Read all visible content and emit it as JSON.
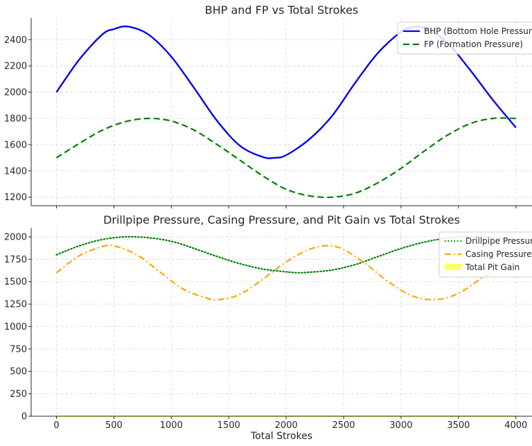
{
  "chart_data": [
    {
      "type": "line",
      "title": "BHP and FP vs Total Strokes",
      "xlabel": "",
      "ylabel": "",
      "xlim": [
        -220,
        4140
      ],
      "ylim": [
        1135,
        2565
      ],
      "xticks": [
        0,
        500,
        1000,
        1500,
        2000,
        2500,
        3000,
        3500,
        4000
      ],
      "yticks": [
        1200,
        1400,
        1600,
        1800,
        2000,
        2200,
        2400
      ],
      "ytick_labels": [
        "1200",
        "1400",
        "1600",
        "1800",
        "2000",
        "2200",
        "2400"
      ],
      "grid": true,
      "legend": "top-right",
      "series": [
        {
          "name": "BHP (Bottom Hole Pressure)",
          "color": "#0000ee",
          "style": "solid",
          "x": [
            0,
            200,
            400,
            500,
            620,
            800,
            1000,
            1200,
            1400,
            1600,
            1800,
            1900,
            2000,
            2200,
            2400,
            2600,
            2800,
            3000,
            3100,
            3200,
            3400,
            3600,
            3800,
            4000
          ],
          "y": [
            2000,
            2250,
            2440,
            2480,
            2500,
            2440,
            2270,
            2030,
            1780,
            1590,
            1505,
            1500,
            1520,
            1640,
            1820,
            2070,
            2300,
            2460,
            2495,
            2490,
            2380,
            2170,
            1940,
            1730
          ]
        },
        {
          "name": "FP (Formation Pressure)",
          "color": "#007f00",
          "style": "dashed",
          "x": [
            0,
            200,
            400,
            600,
            800,
            1000,
            1200,
            1400,
            1600,
            1800,
            2000,
            2200,
            2400,
            2600,
            2800,
            3000,
            3200,
            3400,
            3600,
            3800,
            4000
          ],
          "y": [
            1500,
            1610,
            1710,
            1775,
            1800,
            1780,
            1710,
            1600,
            1480,
            1360,
            1260,
            1210,
            1200,
            1230,
            1310,
            1420,
            1550,
            1670,
            1760,
            1800,
            1800
          ]
        }
      ]
    },
    {
      "type": "line",
      "title": "Drillpipe Pressure, Casing Pressure, and Pit Gain vs Total Strokes",
      "xlabel": "Total Strokes",
      "ylabel": "",
      "xlim": [
        -220,
        4140
      ],
      "ylim": [
        0,
        2100
      ],
      "xticks": [
        0,
        500,
        1000,
        1500,
        2000,
        2500,
        3000,
        3500,
        4000
      ],
      "yticks": [
        0,
        250,
        500,
        750,
        1000,
        1250,
        1500,
        1750,
        2000
      ],
      "ytick_labels": [
        "0",
        "250",
        "500",
        "750",
        "1000",
        "1250",
        "1500",
        "1750",
        "2000"
      ],
      "grid": true,
      "legend": "top-right",
      "series": [
        {
          "name": "Drillpipe Pressure",
          "color": "#007f00",
          "style": "dotted",
          "x": [
            0,
            200,
            400,
            600,
            800,
            1000,
            1200,
            1400,
            1600,
            1800,
            2000,
            2100,
            2200,
            2400,
            2600,
            2800,
            3000,
            3200,
            3400,
            3600,
            3800,
            4000
          ],
          "y": [
            1800,
            1900,
            1970,
            2000,
            1990,
            1950,
            1870,
            1780,
            1700,
            1640,
            1610,
            1600,
            1605,
            1630,
            1690,
            1780,
            1870,
            1940,
            1985,
            2000,
            1990,
            1960
          ]
        },
        {
          "name": "Casing Pressure",
          "color": "#ffa500",
          "style": "dashdot",
          "x": [
            0,
            200,
            400,
            500,
            700,
            900,
            1100,
            1300,
            1420,
            1600,
            1800,
            2000,
            2200,
            2360,
            2500,
            2700,
            2900,
            3100,
            3300,
            3500,
            3700,
            3900,
            4000
          ],
          "y": [
            1600,
            1790,
            1890,
            1900,
            1800,
            1610,
            1420,
            1320,
            1300,
            1360,
            1530,
            1720,
            1860,
            1900,
            1860,
            1690,
            1490,
            1340,
            1300,
            1370,
            1540,
            1720,
            1790
          ]
        },
        {
          "name": "Total Pit Gain",
          "color": "#ffff66",
          "style": "fill",
          "x": [
            0,
            4000
          ],
          "y": [
            0,
            0
          ]
        }
      ]
    }
  ]
}
